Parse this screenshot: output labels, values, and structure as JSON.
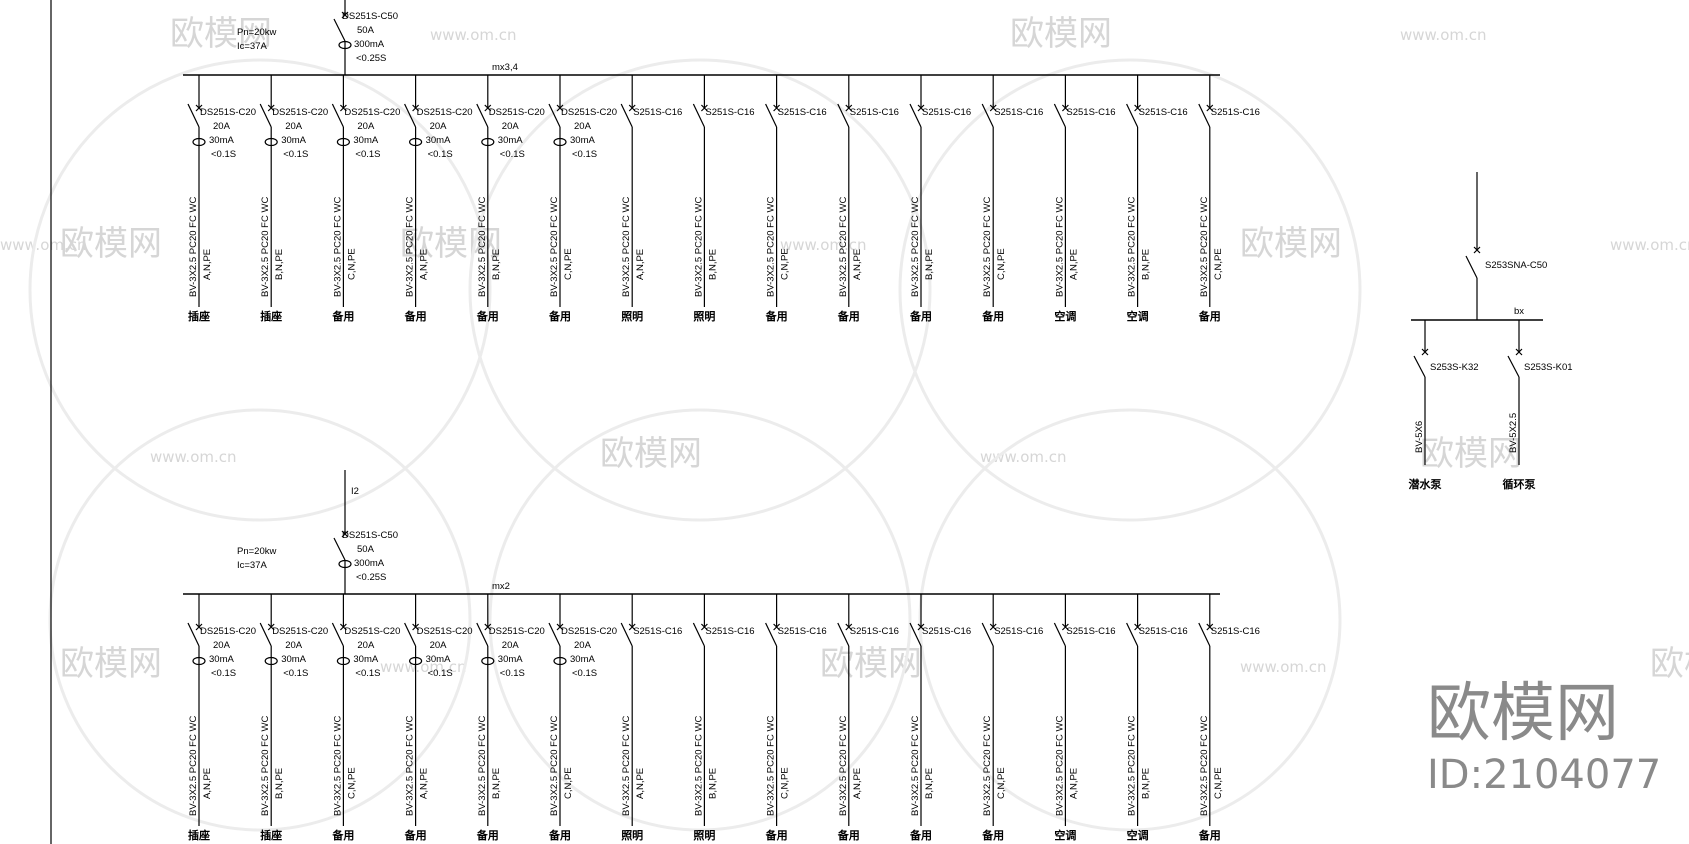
{
  "panels": [
    {
      "feeder": {
        "id_label": "",
        "breaker": "DS251S-C50",
        "rating": "50A",
        "leakage": "300mA",
        "trip": "<0.25S"
      },
      "power": "Pn=20kw",
      "current": "Ic=37A",
      "bus_label": "mx3,4",
      "branches": [
        {
          "breaker": "DS251S-C20",
          "rating": "20A",
          "leakage": "30mA",
          "trip": "<0.1S",
          "cable": "BV-3X2.5  PC20  FC  WC",
          "phase": "A,N,PE",
          "load": "插座"
        },
        {
          "breaker": "DS251S-C20",
          "rating": "20A",
          "leakage": "30mA",
          "trip": "<0.1S",
          "cable": "BV-3X2.5  PC20  FC  WC",
          "phase": "B,N,PE",
          "load": "插座"
        },
        {
          "breaker": "DS251S-C20",
          "rating": "20A",
          "leakage": "30mA",
          "trip": "<0.1S",
          "cable": "BV-3X2.5  PC20  FC  WC",
          "phase": "C,N,PE",
          "load": "备用"
        },
        {
          "breaker": "DS251S-C20",
          "rating": "20A",
          "leakage": "30mA",
          "trip": "<0.1S",
          "cable": "BV-3X2.5  PC20  FC  WC",
          "phase": "A,N,PE",
          "load": "备用"
        },
        {
          "breaker": "DS251S-C20",
          "rating": "20A",
          "leakage": "30mA",
          "trip": "<0.1S",
          "cable": "BV-3X2.5  PC20  FC  WC",
          "phase": "B,N,PE",
          "load": "备用"
        },
        {
          "breaker": "DS251S-C20",
          "rating": "20A",
          "leakage": "30mA",
          "trip": "<0.1S",
          "cable": "BV-3X2.5  PC20  FC  WC",
          "phase": "C,N,PE",
          "load": "备用"
        },
        {
          "breaker": "S251S-C16",
          "cable": "BV-3X2.5  PC20  FC  WC",
          "phase": "A,N,PE",
          "load": "照明"
        },
        {
          "breaker": "S251S-C16",
          "cable": "BV-3X2.5  PC20  FC  WC",
          "phase": "B,N,PE",
          "load": "照明"
        },
        {
          "breaker": "S251S-C16",
          "cable": "BV-3X2.5  PC20  FC  WC",
          "phase": "C,N,PE",
          "load": "备用"
        },
        {
          "breaker": "S251S-C16",
          "cable": "BV-3X2.5  PC20  FC  WC",
          "phase": "A,N,PE",
          "load": "备用"
        },
        {
          "breaker": "S251S-C16",
          "cable": "BV-3X2.5  PC20  FC  WC",
          "phase": "B,N,PE",
          "load": "备用"
        },
        {
          "breaker": "S251S-C16",
          "cable": "BV-3X2.5  PC20  FC  WC",
          "phase": "C,N,PE",
          "load": "备用"
        },
        {
          "breaker": "S251S-C16",
          "cable": "BV-3X2.5  PC20  FC  WC",
          "phase": "A,N,PE",
          "load": "空调"
        },
        {
          "breaker": "S251S-C16",
          "cable": "BV-3X2.5  PC20  FC  WC",
          "phase": "B,N,PE",
          "load": "空调"
        },
        {
          "breaker": "S251S-C16",
          "cable": "BV-3X2.5  PC20  FC  WC",
          "phase": "C,N,PE",
          "load": "备用"
        }
      ]
    },
    {
      "feeder": {
        "id_label": "I2",
        "breaker": "DS251S-C50",
        "rating": "50A",
        "leakage": "300mA",
        "trip": "<0.25S"
      },
      "power": "Pn=20kw",
      "current": "Ic=37A",
      "bus_label": "mx2",
      "branches": [
        {
          "breaker": "DS251S-C20",
          "rating": "20A",
          "leakage": "30mA",
          "trip": "<0.1S",
          "cable": "BV-3X2.5  PC20  FC  WC",
          "phase": "A,N,PE",
          "load": "插座"
        },
        {
          "breaker": "DS251S-C20",
          "rating": "20A",
          "leakage": "30mA",
          "trip": "<0.1S",
          "cable": "BV-3X2.5  PC20  FC  WC",
          "phase": "B,N,PE",
          "load": "插座"
        },
        {
          "breaker": "DS251S-C20",
          "rating": "20A",
          "leakage": "30mA",
          "trip": "<0.1S",
          "cable": "BV-3X2.5  PC20  FC  WC",
          "phase": "C,N,PE",
          "load": "备用"
        },
        {
          "breaker": "DS251S-C20",
          "rating": "20A",
          "leakage": "30mA",
          "trip": "<0.1S",
          "cable": "BV-3X2.5  PC20  FC  WC",
          "phase": "A,N,PE",
          "load": "备用"
        },
        {
          "breaker": "DS251S-C20",
          "rating": "20A",
          "leakage": "30mA",
          "trip": "<0.1S",
          "cable": "BV-3X2.5  PC20  FC  WC",
          "phase": "B,N,PE",
          "load": "备用"
        },
        {
          "breaker": "DS251S-C20",
          "rating": "20A",
          "leakage": "30mA",
          "trip": "<0.1S",
          "cable": "BV-3X2.5  PC20  FC  WC",
          "phase": "C,N,PE",
          "load": "备用"
        },
        {
          "breaker": "S251S-C16",
          "cable": "BV-3X2.5  PC20  FC  WC",
          "phase": "A,N,PE",
          "load": "照明"
        },
        {
          "breaker": "S251S-C16",
          "cable": "BV-3X2.5  PC20  FC  WC",
          "phase": "B,N,PE",
          "load": "照明"
        },
        {
          "breaker": "S251S-C16",
          "cable": "BV-3X2.5  PC20  FC  WC",
          "phase": "C,N,PE",
          "load": "备用"
        },
        {
          "breaker": "S251S-C16",
          "cable": "BV-3X2.5  PC20  FC  WC",
          "phase": "A,N,PE",
          "load": "备用"
        },
        {
          "breaker": "S251S-C16",
          "cable": "BV-3X2.5  PC20  FC  WC",
          "phase": "B,N,PE",
          "load": "备用"
        },
        {
          "breaker": "S251S-C16",
          "cable": "BV-3X2.5  PC20  FC  WC",
          "phase": "C,N,PE",
          "load": "备用"
        },
        {
          "breaker": "S251S-C16",
          "cable": "BV-3X2.5  PC20  FC  WC",
          "phase": "A,N,PE",
          "load": "空调"
        },
        {
          "breaker": "S251S-C16",
          "cable": "BV-3X2.5  PC20  FC  WC",
          "phase": "B,N,PE",
          "load": "空调"
        },
        {
          "breaker": "S251S-C16",
          "cable": "BV-3X2.5  PC20  FC  WC",
          "phase": "C,N,PE",
          "load": "备用"
        }
      ]
    }
  ],
  "pump_panel": {
    "main_breaker": "S253SNA-C50",
    "bus_label": "bx",
    "branches": [
      {
        "breaker": "S253S-K32",
        "cable": "BV-5X6",
        "load": "潜水泵"
      },
      {
        "breaker": "S253S-K01",
        "cable": "BV-5X2.5",
        "load": "循环泵"
      }
    ]
  },
  "watermark": {
    "brand": "欧模网",
    "url": "www.om.cn",
    "id": "ID:2104077"
  }
}
